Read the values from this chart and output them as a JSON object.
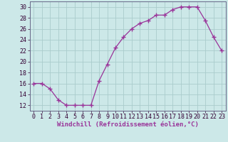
{
  "x": [
    0,
    1,
    2,
    3,
    4,
    5,
    6,
    7,
    8,
    9,
    10,
    11,
    12,
    13,
    14,
    15,
    16,
    17,
    18,
    19,
    20,
    21,
    22,
    23
  ],
  "y": [
    16,
    16,
    15,
    13,
    12,
    12,
    12,
    12,
    16.5,
    19.5,
    22.5,
    24.5,
    26,
    27,
    27.5,
    28.5,
    28.5,
    29.5,
    30,
    30,
    30,
    27.5,
    24.5,
    22
  ],
  "line_color": "#993399",
  "marker": "+",
  "marker_size": 4,
  "bg_color": "#cce8e8",
  "grid_color": "#aacccc",
  "xlabel": "Windchill (Refroidissement éolien,°C)",
  "xlabel_fontsize": 6.5,
  "tick_fontsize": 6,
  "yticks": [
    12,
    14,
    16,
    18,
    20,
    22,
    24,
    26,
    28,
    30
  ],
  "ylim": [
    11,
    31
  ],
  "xlim": [
    -0.5,
    23.5
  ],
  "xticks": [
    0,
    1,
    2,
    3,
    4,
    5,
    6,
    7,
    8,
    9,
    10,
    11,
    12,
    13,
    14,
    15,
    16,
    17,
    18,
    19,
    20,
    21,
    22,
    23
  ]
}
